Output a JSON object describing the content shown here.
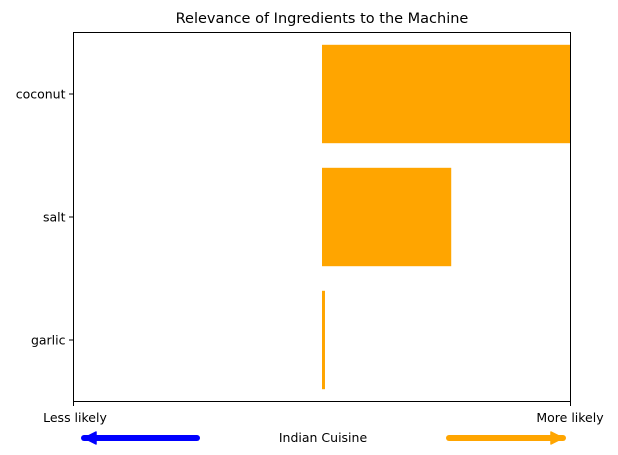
{
  "chart_data": {
    "type": "bar",
    "orientation": "horizontal",
    "title": "Relevance of Ingredients to the Machine",
    "categories": [
      "coconut",
      "salt",
      "garlic"
    ],
    "values": [
      0.5,
      0.26,
      0.006
    ],
    "xlim": [
      -0.5,
      0.5
    ],
    "bar_color": "#FFA500",
    "x_tick_labels": {
      "left": "Less likely",
      "right": "More likely"
    },
    "xlabel": "Indian Cuisine",
    "arrows": {
      "left_color": "#0000FF",
      "right_color": "#FFA500"
    },
    "grid": false
  }
}
